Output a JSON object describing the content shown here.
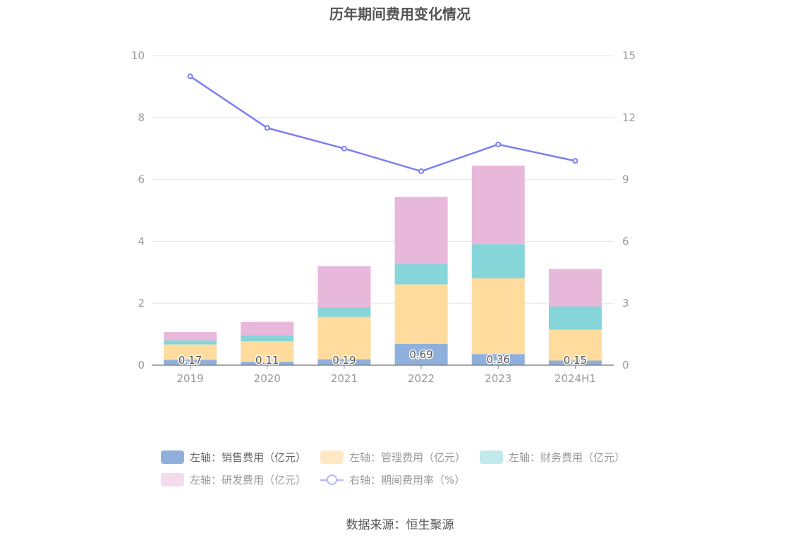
{
  "title": "历年期间费用变化情况",
  "source": "数据来源：恒生聚源",
  "chart_data": {
    "type": "bar",
    "stacked": true,
    "categories": [
      "2019",
      "2020",
      "2021",
      "2022",
      "2023",
      "2024H1"
    ],
    "left_axis": {
      "ylim": [
        0,
        10
      ],
      "ticks": [
        "0",
        "2",
        "4",
        "6",
        "8",
        "10"
      ]
    },
    "right_axis": {
      "ylim": [
        0,
        15
      ],
      "ticks": [
        "0",
        "3",
        "6",
        "9",
        "12",
        "15"
      ]
    },
    "grid": true,
    "series": [
      {
        "name": "左轴：销售费用（亿元）",
        "values": [
          0.17,
          0.11,
          0.19,
          0.69,
          0.36,
          0.15
        ],
        "labels": [
          "0.17",
          "0.11",
          "0.19",
          "0.69",
          "0.36",
          "0.15"
        ],
        "color": "#8fb0dc",
        "axis": "left"
      },
      {
        "name": "左轴：管理费用（亿元）",
        "values": [
          0.5,
          0.66,
          1.37,
          1.92,
          2.45,
          1.0
        ],
        "color": "#ffdc9e",
        "axis": "left"
      },
      {
        "name": "左轴：财务费用（亿元）",
        "values": [
          0.13,
          0.2,
          0.31,
          0.66,
          1.1,
          0.75
        ],
        "color": "#85d5d9",
        "axis": "left"
      },
      {
        "name": "左轴：研发费用（亿元）",
        "values": [
          0.27,
          0.43,
          1.33,
          2.17,
          2.54,
          1.21
        ],
        "color": "#e8b8da",
        "axis": "left"
      },
      {
        "name": "右轴：期间费用率（%）",
        "type": "line",
        "values": [
          14.0,
          11.5,
          10.5,
          9.4,
          10.7,
          9.9
        ],
        "color": "#7b7ff0",
        "axis": "right"
      }
    ],
    "legend_position": "bottom"
  }
}
